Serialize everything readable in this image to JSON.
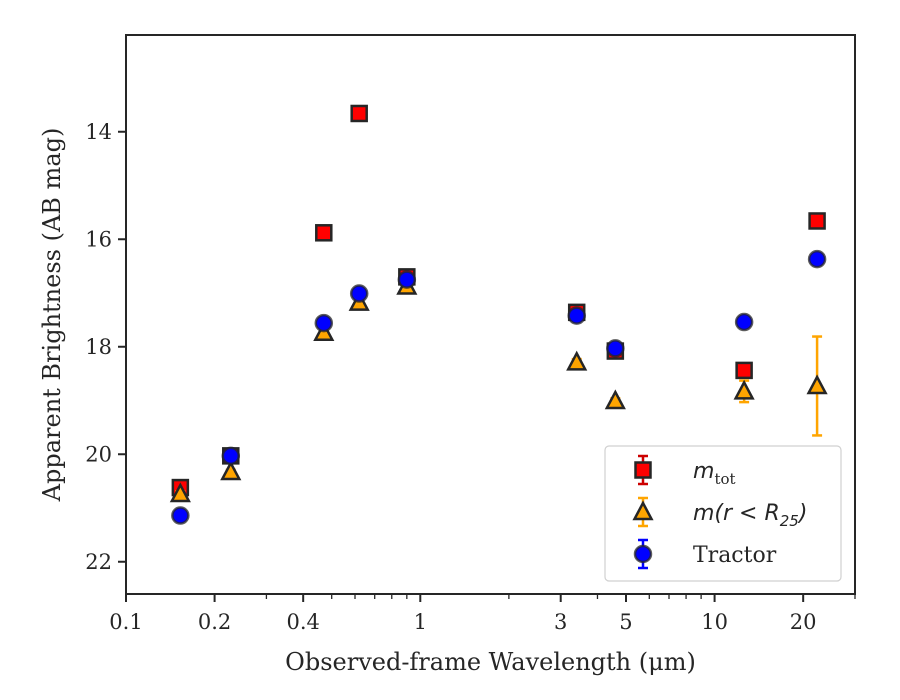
{
  "chart_data": {
    "type": "scatter",
    "xlabel": "Observed-frame Wavelength (μm)",
    "ylabel": "Apparent Brightness (AB mag)",
    "xscale": "log",
    "xlim": [
      0.1,
      30
    ],
    "ylim": [
      22.6,
      12.2
    ],
    "y_inverted": true,
    "x_ticks": [
      {
        "value": 0.1,
        "label": "0.1"
      },
      {
        "value": 0.2,
        "label": "0.2"
      },
      {
        "value": 0.4,
        "label": "0.4"
      },
      {
        "value": 1,
        "label": "1"
      },
      {
        "value": 3,
        "label": "3"
      },
      {
        "value": 5,
        "label": "5"
      },
      {
        "value": 10,
        "label": "10"
      },
      {
        "value": 20,
        "label": "20"
      }
    ],
    "y_ticks": [
      {
        "value": 14,
        "label": "14"
      },
      {
        "value": 16,
        "label": "16"
      },
      {
        "value": 18,
        "label": "18"
      },
      {
        "value": 20,
        "label": "20"
      },
      {
        "value": 22,
        "label": "22"
      }
    ],
    "grid": false,
    "legend_position": "lower right",
    "series": [
      {
        "name": "m_tot",
        "marker": "square",
        "color": "#ff0000",
        "errcolor": "#cc0000",
        "x": [
          0.153,
          0.227,
          0.47,
          0.62,
          0.9,
          3.4,
          4.6,
          12.6,
          22.3
        ],
        "y": [
          20.62,
          20.03,
          15.88,
          13.66,
          16.7,
          17.36,
          18.08,
          18.44,
          15.66
        ],
        "yerr": [
          0.05,
          0.04,
          0.02,
          0.02,
          0.02,
          0.06,
          0.05,
          0.05,
          0.04
        ]
      },
      {
        "name": "m(r < R_25)",
        "marker": "triangle",
        "color": "#ffa500",
        "errcolor": "#ffa500",
        "x": [
          0.153,
          0.227,
          0.47,
          0.62,
          0.9,
          3.4,
          4.6,
          12.6,
          22.3
        ],
        "y": [
          20.74,
          20.33,
          17.74,
          17.18,
          16.88,
          18.29,
          19.01,
          18.83,
          18.73
        ],
        "yerr": [
          0.05,
          0.04,
          0.02,
          0.02,
          0.02,
          0.06,
          0.05,
          0.2,
          0.92
        ]
      },
      {
        "name": "Tractor",
        "marker": "circle",
        "color": "#0000ff",
        "errcolor": "#0000ff",
        "x": [
          0.153,
          0.227,
          0.47,
          0.62,
          0.9,
          3.4,
          4.6,
          12.6,
          22.3
        ],
        "y": [
          21.14,
          20.03,
          17.56,
          17.01,
          16.75,
          17.42,
          18.03,
          17.54,
          16.37
        ],
        "yerr": [
          0.05,
          0.04,
          0.02,
          0.02,
          0.02,
          0.06,
          0.05,
          0.05,
          0.04
        ]
      }
    ],
    "legend": [
      {
        "series": 0,
        "label_base": "m",
        "label_sub": "tot",
        "label_suffix": ""
      },
      {
        "series": 1,
        "label_base": "m(r < R",
        "label_sub": "25",
        "label_suffix": ")"
      },
      {
        "series": 2,
        "label_base": "Tractor",
        "label_sub": "",
        "label_suffix": ""
      }
    ]
  }
}
